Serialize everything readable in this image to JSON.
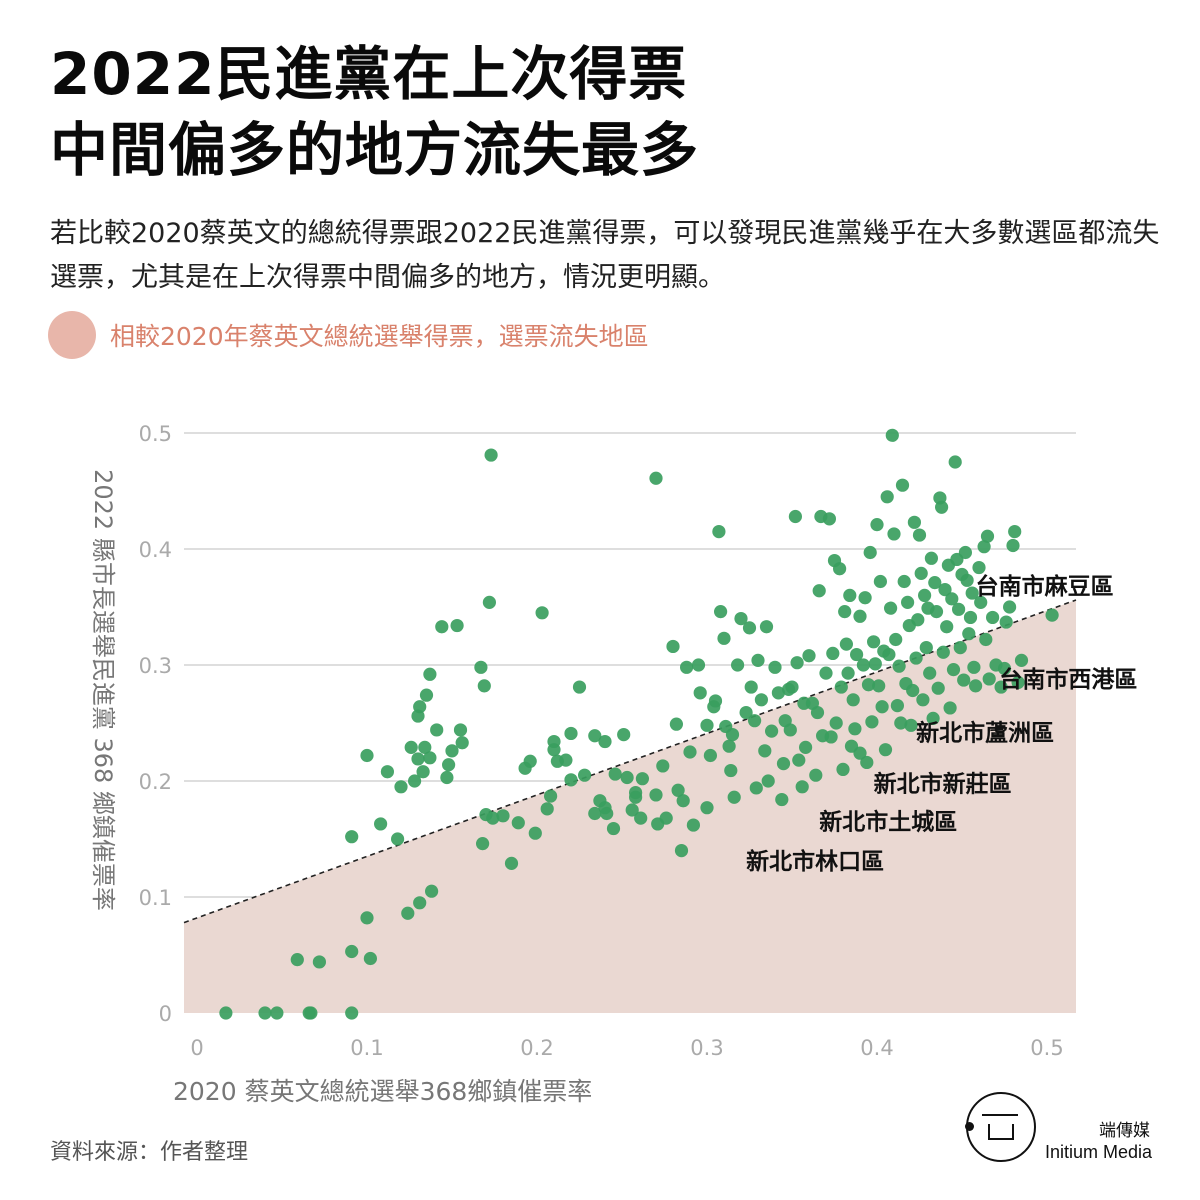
{
  "title_lines": [
    "2022民進黨在上次得票",
    "中間偏多的地方流失最多"
  ],
  "subtitle": "若比較2020蔡英文的總統得票跟2022民進黨得票，可以發現民進黨幾乎在大多數選區都流失選票，尤其是在上次得票中間偏多的地方，情況更明顯。",
  "legend_label": "相較2020年蔡英文總統選舉得票，選票流失地區",
  "colors": {
    "point": "#3a9e5e",
    "loss_area": "#ead8d2",
    "grid": "#d4d4d4",
    "tick": "#aaaaaa",
    "legend_swatch": "#e8b6aa",
    "legend_text": "#d9826c"
  },
  "source": "資料來源：作者整理",
  "brand": {
    "zh": "端傳媒",
    "en": "Initium Media",
    "icon": "initium-logo-icon"
  },
  "chart_data": {
    "type": "scatter",
    "xlabel": "2020 蔡英文總統選舉368鄉鎮催票率",
    "ylabel": "2022 縣市長選舉民進黨 368 鄉鎮催票率",
    "xlim": [
      0,
      0.52
    ],
    "ylim": [
      0,
      0.5
    ],
    "x_ticks": [
      0,
      0.1,
      0.2,
      0.3,
      0.4,
      0.5
    ],
    "x_tick_labels": [
      "0",
      "0.1",
      "0.2",
      "0.3",
      "0.4",
      "0.5"
    ],
    "y_ticks": [
      0,
      0.1,
      0.2,
      0.3,
      0.4,
      0.5
    ],
    "y_tick_labels": [
      "0",
      "0.1",
      "0.2",
      "0.3",
      "0.4",
      "0.5"
    ],
    "grid": true,
    "loss_line": {
      "slope": 0.53,
      "intercept": 0.082
    },
    "annotations": [
      {
        "text": "台南市麻豆區",
        "x": 0.458,
        "y": 0.368
      },
      {
        "text": "台南市西港區",
        "x": 0.472,
        "y": 0.288
      },
      {
        "text": "新北市蘆洲區",
        "x": 0.423,
        "y": 0.242
      },
      {
        "text": "新北市新莊區",
        "x": 0.398,
        "y": 0.198
      },
      {
        "text": "新北市土城區",
        "x": 0.366,
        "y": 0.165
      },
      {
        "text": "新北市林口區",
        "x": 0.323,
        "y": 0.131
      }
    ],
    "points": [
      [
        0.017,
        0.0
      ],
      [
        0.04,
        0.0
      ],
      [
        0.047,
        0.0
      ],
      [
        0.066,
        0.0
      ],
      [
        0.067,
        0.0
      ],
      [
        0.091,
        0.0
      ],
      [
        0.059,
        0.046
      ],
      [
        0.072,
        0.044
      ],
      [
        0.091,
        0.053
      ],
      [
        0.102,
        0.047
      ],
      [
        0.1,
        0.082
      ],
      [
        0.091,
        0.152
      ],
      [
        0.108,
        0.163
      ],
      [
        0.118,
        0.15
      ],
      [
        0.124,
        0.086
      ],
      [
        0.131,
        0.095
      ],
      [
        0.138,
        0.105
      ],
      [
        0.1,
        0.222
      ],
      [
        0.112,
        0.208
      ],
      [
        0.12,
        0.195
      ],
      [
        0.126,
        0.229
      ],
      [
        0.13,
        0.219
      ],
      [
        0.134,
        0.229
      ],
      [
        0.137,
        0.22
      ],
      [
        0.141,
        0.244
      ],
      [
        0.147,
        0.203
      ],
      [
        0.15,
        0.226
      ],
      [
        0.148,
        0.214
      ],
      [
        0.131,
        0.264
      ],
      [
        0.135,
        0.274
      ],
      [
        0.137,
        0.292
      ],
      [
        0.13,
        0.256
      ],
      [
        0.128,
        0.2
      ],
      [
        0.133,
        0.208
      ],
      [
        0.144,
        0.333
      ],
      [
        0.153,
        0.334
      ],
      [
        0.155,
        0.244
      ],
      [
        0.156,
        0.233
      ],
      [
        0.167,
        0.298
      ],
      [
        0.169,
        0.282
      ],
      [
        0.173,
        0.481
      ],
      [
        0.172,
        0.354
      ],
      [
        0.17,
        0.171
      ],
      [
        0.168,
        0.146
      ],
      [
        0.174,
        0.168
      ],
      [
        0.18,
        0.17
      ],
      [
        0.185,
        0.129
      ],
      [
        0.189,
        0.164
      ],
      [
        0.193,
        0.211
      ],
      [
        0.196,
        0.217
      ],
      [
        0.199,
        0.155
      ],
      [
        0.203,
        0.345
      ],
      [
        0.206,
        0.176
      ],
      [
        0.208,
        0.187
      ],
      [
        0.21,
        0.234
      ],
      [
        0.21,
        0.227
      ],
      [
        0.212,
        0.217
      ],
      [
        0.217,
        0.218
      ],
      [
        0.22,
        0.241
      ],
      [
        0.22,
        0.201
      ],
      [
        0.225,
        0.281
      ],
      [
        0.228,
        0.205
      ],
      [
        0.234,
        0.239
      ],
      [
        0.234,
        0.172
      ],
      [
        0.237,
        0.183
      ],
      [
        0.24,
        0.234
      ],
      [
        0.24,
        0.177
      ],
      [
        0.241,
        0.172
      ],
      [
        0.245,
        0.159
      ],
      [
        0.246,
        0.206
      ],
      [
        0.251,
        0.24
      ],
      [
        0.253,
        0.203
      ],
      [
        0.256,
        0.175
      ],
      [
        0.258,
        0.19
      ],
      [
        0.258,
        0.186
      ],
      [
        0.261,
        0.168
      ],
      [
        0.262,
        0.202
      ],
      [
        0.27,
        0.461
      ],
      [
        0.27,
        0.188
      ],
      [
        0.271,
        0.163
      ],
      [
        0.274,
        0.213
      ],
      [
        0.276,
        0.168
      ],
      [
        0.28,
        0.316
      ],
      [
        0.282,
        0.249
      ],
      [
        0.283,
        0.192
      ],
      [
        0.285,
        0.14
      ],
      [
        0.286,
        0.183
      ],
      [
        0.288,
        0.298
      ],
      [
        0.29,
        0.225
      ],
      [
        0.292,
        0.162
      ],
      [
        0.295,
        0.3
      ],
      [
        0.296,
        0.276
      ],
      [
        0.3,
        0.248
      ],
      [
        0.3,
        0.177
      ],
      [
        0.302,
        0.222
      ],
      [
        0.304,
        0.264
      ],
      [
        0.305,
        0.269
      ],
      [
        0.307,
        0.415
      ],
      [
        0.308,
        0.346
      ],
      [
        0.31,
        0.323
      ],
      [
        0.311,
        0.247
      ],
      [
        0.313,
        0.23
      ],
      [
        0.314,
        0.209
      ],
      [
        0.315,
        0.24
      ],
      [
        0.316,
        0.186
      ],
      [
        0.318,
        0.3
      ],
      [
        0.32,
        0.34
      ],
      [
        0.323,
        0.259
      ],
      [
        0.325,
        0.332
      ],
      [
        0.326,
        0.281
      ],
      [
        0.328,
        0.252
      ],
      [
        0.329,
        0.194
      ],
      [
        0.33,
        0.304
      ],
      [
        0.332,
        0.27
      ],
      [
        0.334,
        0.226
      ],
      [
        0.335,
        0.333
      ],
      [
        0.336,
        0.2
      ],
      [
        0.338,
        0.243
      ],
      [
        0.34,
        0.298
      ],
      [
        0.342,
        0.276
      ],
      [
        0.344,
        0.184
      ],
      [
        0.345,
        0.215
      ],
      [
        0.346,
        0.252
      ],
      [
        0.348,
        0.279
      ],
      [
        0.349,
        0.244
      ],
      [
        0.35,
        0.281
      ],
      [
        0.352,
        0.428
      ],
      [
        0.353,
        0.302
      ],
      [
        0.354,
        0.218
      ],
      [
        0.356,
        0.195
      ],
      [
        0.357,
        0.267
      ],
      [
        0.358,
        0.229
      ],
      [
        0.36,
        0.308
      ],
      [
        0.362,
        0.267
      ],
      [
        0.364,
        0.205
      ],
      [
        0.365,
        0.259
      ],
      [
        0.366,
        0.364
      ],
      [
        0.367,
        0.428
      ],
      [
        0.368,
        0.239
      ],
      [
        0.37,
        0.293
      ],
      [
        0.372,
        0.426
      ],
      [
        0.373,
        0.238
      ],
      [
        0.374,
        0.31
      ],
      [
        0.375,
        0.39
      ],
      [
        0.376,
        0.25
      ],
      [
        0.378,
        0.383
      ],
      [
        0.379,
        0.281
      ],
      [
        0.38,
        0.21
      ],
      [
        0.381,
        0.346
      ],
      [
        0.382,
        0.318
      ],
      [
        0.383,
        0.293
      ],
      [
        0.384,
        0.36
      ],
      [
        0.385,
        0.23
      ],
      [
        0.386,
        0.27
      ],
      [
        0.387,
        0.245
      ],
      [
        0.388,
        0.309
      ],
      [
        0.39,
        0.342
      ],
      [
        0.39,
        0.224
      ],
      [
        0.392,
        0.3
      ],
      [
        0.393,
        0.358
      ],
      [
        0.394,
        0.216
      ],
      [
        0.395,
        0.283
      ],
      [
        0.396,
        0.397
      ],
      [
        0.397,
        0.251
      ],
      [
        0.398,
        0.32
      ],
      [
        0.399,
        0.301
      ],
      [
        0.4,
        0.421
      ],
      [
        0.401,
        0.282
      ],
      [
        0.402,
        0.372
      ],
      [
        0.403,
        0.264
      ],
      [
        0.404,
        0.312
      ],
      [
        0.405,
        0.227
      ],
      [
        0.406,
        0.445
      ],
      [
        0.407,
        0.309
      ],
      [
        0.408,
        0.349
      ],
      [
        0.409,
        0.498
      ],
      [
        0.41,
        0.413
      ],
      [
        0.411,
        0.322
      ],
      [
        0.412,
        0.265
      ],
      [
        0.413,
        0.299
      ],
      [
        0.414,
        0.25
      ],
      [
        0.415,
        0.455
      ],
      [
        0.416,
        0.372
      ],
      [
        0.417,
        0.284
      ],
      [
        0.418,
        0.354
      ],
      [
        0.419,
        0.334
      ],
      [
        0.42,
        0.248
      ],
      [
        0.421,
        0.278
      ],
      [
        0.422,
        0.423
      ],
      [
        0.423,
        0.306
      ],
      [
        0.424,
        0.339
      ],
      [
        0.425,
        0.412
      ],
      [
        0.426,
        0.379
      ],
      [
        0.427,
        0.27
      ],
      [
        0.428,
        0.36
      ],
      [
        0.429,
        0.315
      ],
      [
        0.43,
        0.349
      ],
      [
        0.431,
        0.293
      ],
      [
        0.432,
        0.392
      ],
      [
        0.433,
        0.254
      ],
      [
        0.434,
        0.371
      ],
      [
        0.435,
        0.346
      ],
      [
        0.436,
        0.28
      ],
      [
        0.437,
        0.444
      ],
      [
        0.438,
        0.436
      ],
      [
        0.439,
        0.311
      ],
      [
        0.44,
        0.365
      ],
      [
        0.441,
        0.333
      ],
      [
        0.442,
        0.386
      ],
      [
        0.443,
        0.263
      ],
      [
        0.444,
        0.357
      ],
      [
        0.445,
        0.296
      ],
      [
        0.446,
        0.475
      ],
      [
        0.447,
        0.391
      ],
      [
        0.448,
        0.348
      ],
      [
        0.449,
        0.315
      ],
      [
        0.45,
        0.378
      ],
      [
        0.451,
        0.287
      ],
      [
        0.452,
        0.397
      ],
      [
        0.453,
        0.373
      ],
      [
        0.454,
        0.327
      ],
      [
        0.455,
        0.341
      ],
      [
        0.456,
        0.362
      ],
      [
        0.457,
        0.298
      ],
      [
        0.458,
        0.282
      ],
      [
        0.46,
        0.384
      ],
      [
        0.461,
        0.354
      ],
      [
        0.463,
        0.402
      ],
      [
        0.464,
        0.322
      ],
      [
        0.465,
        0.411
      ],
      [
        0.466,
        0.288
      ],
      [
        0.468,
        0.341
      ],
      [
        0.47,
        0.3
      ],
      [
        0.473,
        0.281
      ],
      [
        0.475,
        0.297
      ],
      [
        0.476,
        0.337
      ],
      [
        0.478,
        0.35
      ],
      [
        0.48,
        0.403
      ],
      [
        0.481,
        0.415
      ],
      [
        0.483,
        0.285
      ],
      [
        0.485,
        0.304
      ],
      [
        0.503,
        0.343
      ]
    ]
  }
}
